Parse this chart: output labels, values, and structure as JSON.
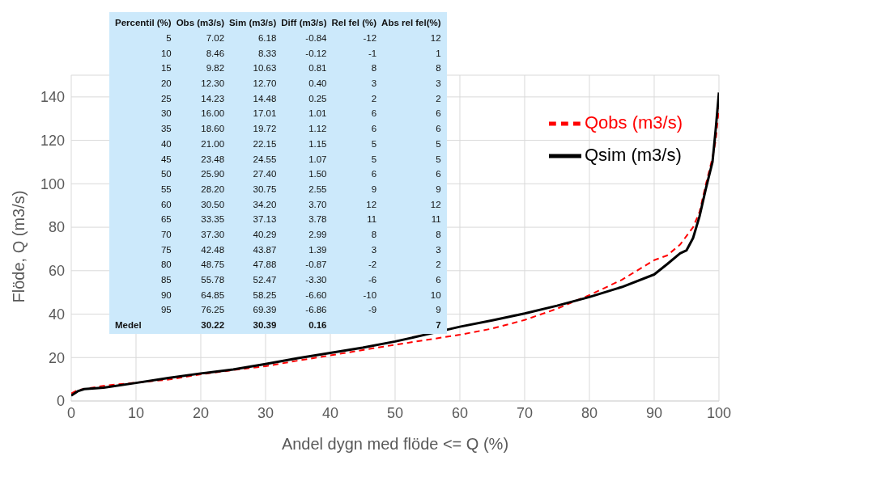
{
  "chart_data": {
    "type": "line",
    "xlabel": "Andel dygn med flöde <= Q (%)",
    "ylabel": "Flöde, Q  (m3/s)",
    "xlim": [
      0,
      100
    ],
    "xticks": [
      0,
      10,
      20,
      30,
      40,
      50,
      60,
      70,
      80,
      90,
      100
    ],
    "ylim": [
      0,
      150
    ],
    "yticks": [
      0,
      20,
      40,
      60,
      80,
      100,
      120,
      140
    ],
    "grid": true,
    "legend": "top right",
    "series": [
      {
        "name": "Qobs (m3/s)",
        "color": "#ff0000",
        "line_style": "dashed",
        "x": [
          0,
          1,
          5,
          10,
          15,
          20,
          25,
          30,
          35,
          40,
          45,
          50,
          55,
          60,
          65,
          70,
          75,
          80,
          85,
          90,
          92,
          94,
          96,
          97,
          98,
          99,
          99.5,
          100
        ],
        "values": [
          3.5,
          5,
          7.02,
          8.46,
          9.82,
          12.3,
          14.23,
          16,
          18.6,
          21,
          23.48,
          25.9,
          28.2,
          30.5,
          33.35,
          37.3,
          42.48,
          48.75,
          55.78,
          64.85,
          67,
          72,
          80,
          87,
          100,
          112,
          120,
          135
        ]
      },
      {
        "name": "Qsim (m3/s)",
        "color": "#000000",
        "line_style": "solid",
        "x": [
          0,
          1,
          2,
          5,
          10,
          15,
          20,
          25,
          30,
          35,
          40,
          45,
          50,
          55,
          60,
          65,
          70,
          75,
          80,
          85,
          90,
          92,
          94,
          95,
          96,
          97,
          98,
          99,
          99.5,
          100
        ],
        "values": [
          2.5,
          4.5,
          5.5,
          6.18,
          8.33,
          10.63,
          12.7,
          14.48,
          17.01,
          19.72,
          22.15,
          24.55,
          27.4,
          30.75,
          34.2,
          37.13,
          40.29,
          43.87,
          47.88,
          52.47,
          58.25,
          63,
          68,
          69.39,
          75,
          85,
          98,
          110,
          125,
          142
        ]
      }
    ],
    "annotations": [
      "Percentil (%)",
      "Obs (m3/s)",
      "Sim (m3/s)",
      "Diff (m3/s)",
      "Rel fel (%)",
      "Abs rel fel(%)",
      "5",
      "7.02",
      "6.18",
      "-0.84",
      "-12",
      "12",
      "10",
      "8.46",
      "8.33",
      "-0.12",
      "-1",
      "1",
      "15",
      "9.82",
      "10.63",
      "0.81",
      "8",
      "8",
      "20",
      "12.30",
      "12.70",
      "0.40",
      "3",
      "3",
      "25",
      "14.23",
      "14.48",
      "0.25",
      "2",
      "2",
      "30",
      "16.00",
      "17.01",
      "1.01",
      "6",
      "6",
      "35",
      "18.60",
      "19.72",
      "1.12",
      "6",
      "6",
      "40",
      "21.00",
      "22.15",
      "1.15",
      "5",
      "5",
      "45",
      "23.48",
      "24.55",
      "1.07",
      "5",
      "5",
      "50",
      "25.90",
      "27.40",
      "1.50",
      "6",
      "6",
      "55",
      "28.20",
      "30.75",
      "2.55",
      "9",
      "9",
      "60",
      "30.50",
      "34.20",
      "3.70",
      "12",
      "12",
      "65",
      "33.35",
      "37.13",
      "3.78",
      "11",
      "11",
      "70",
      "37.30",
      "40.29",
      "2.99",
      "8",
      "8",
      "75",
      "42.48",
      "43.87",
      "1.39",
      "3",
      "3",
      "80",
      "48.75",
      "47.88",
      "-0.87",
      "-2",
      "2",
      "85",
      "55.78",
      "52.47",
      "-3.30",
      "-6",
      "6",
      "90",
      "64.85",
      "58.25",
      "-6.60",
      "-10",
      "10",
      "95",
      "76.25",
      "69.39",
      "-6.86",
      "-9",
      "9",
      "Medel",
      "30.22",
      "30.39",
      "0.16",
      "7"
    ]
  }
}
